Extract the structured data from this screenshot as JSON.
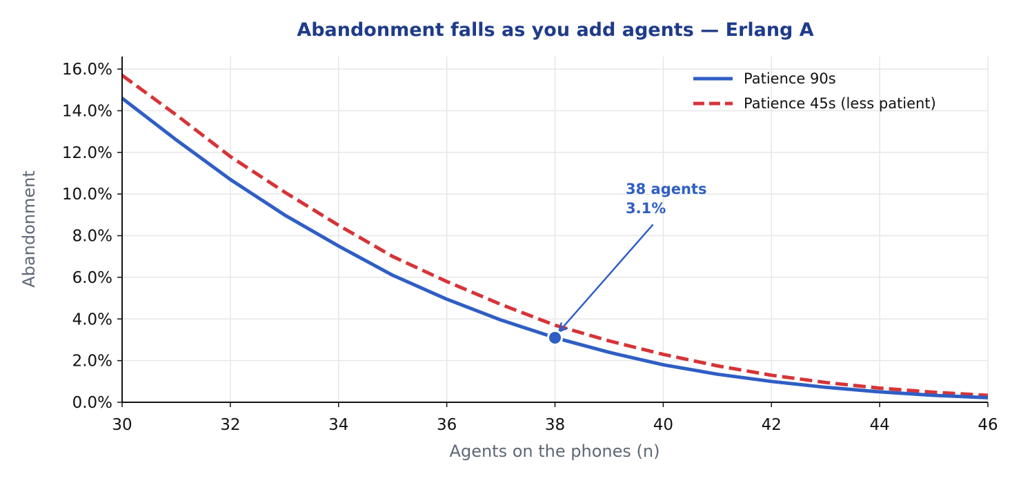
{
  "chart_data": {
    "type": "line",
    "title": "Abandonment falls as you add agents — Erlang A",
    "xlabel": "Agents on the phones (n)",
    "ylabel": "Abandonment",
    "xlim": [
      30,
      46
    ],
    "ylim": [
      0,
      16.6
    ],
    "x_ticks": [
      "30",
      "32",
      "34",
      "36",
      "38",
      "40",
      "42",
      "44",
      "46"
    ],
    "y_ticks": [
      "0.0%",
      "2.0%",
      "4.0%",
      "6.0%",
      "8.0%",
      "10.0%",
      "12.0%",
      "14.0%",
      "16.0%"
    ],
    "grid": true,
    "legend_position": "top-right",
    "x": [
      30,
      31,
      32,
      33,
      34,
      35,
      36,
      37,
      38,
      39,
      40,
      41,
      42,
      43,
      44,
      45,
      46
    ],
    "series": [
      {
        "name": "Patience 90s",
        "color": "#2f5ec4",
        "style": "solid",
        "values": [
          14.6,
          12.6,
          10.7,
          9.0,
          7.5,
          6.1,
          4.95,
          3.95,
          3.1,
          2.4,
          1.8,
          1.35,
          1.0,
          0.72,
          0.5,
          0.33,
          0.22
        ]
      },
      {
        "name": "Patience 45s (less patient)",
        "color": "#d63438",
        "style": "dashed",
        "values": [
          15.7,
          13.8,
          11.8,
          10.1,
          8.5,
          7.0,
          5.8,
          4.7,
          3.7,
          2.95,
          2.3,
          1.75,
          1.3,
          0.95,
          0.68,
          0.48,
          0.33
        ]
      }
    ],
    "annotation": {
      "line1": "38 agents",
      "line2": "3.1%",
      "x": 38,
      "y": 3.1,
      "color": "#2f5ec4"
    },
    "colors": {
      "title": "#1f3b8a",
      "axis_label": "#5f6776",
      "grid": "#e6e6e6",
      "axis": "#111111"
    }
  }
}
